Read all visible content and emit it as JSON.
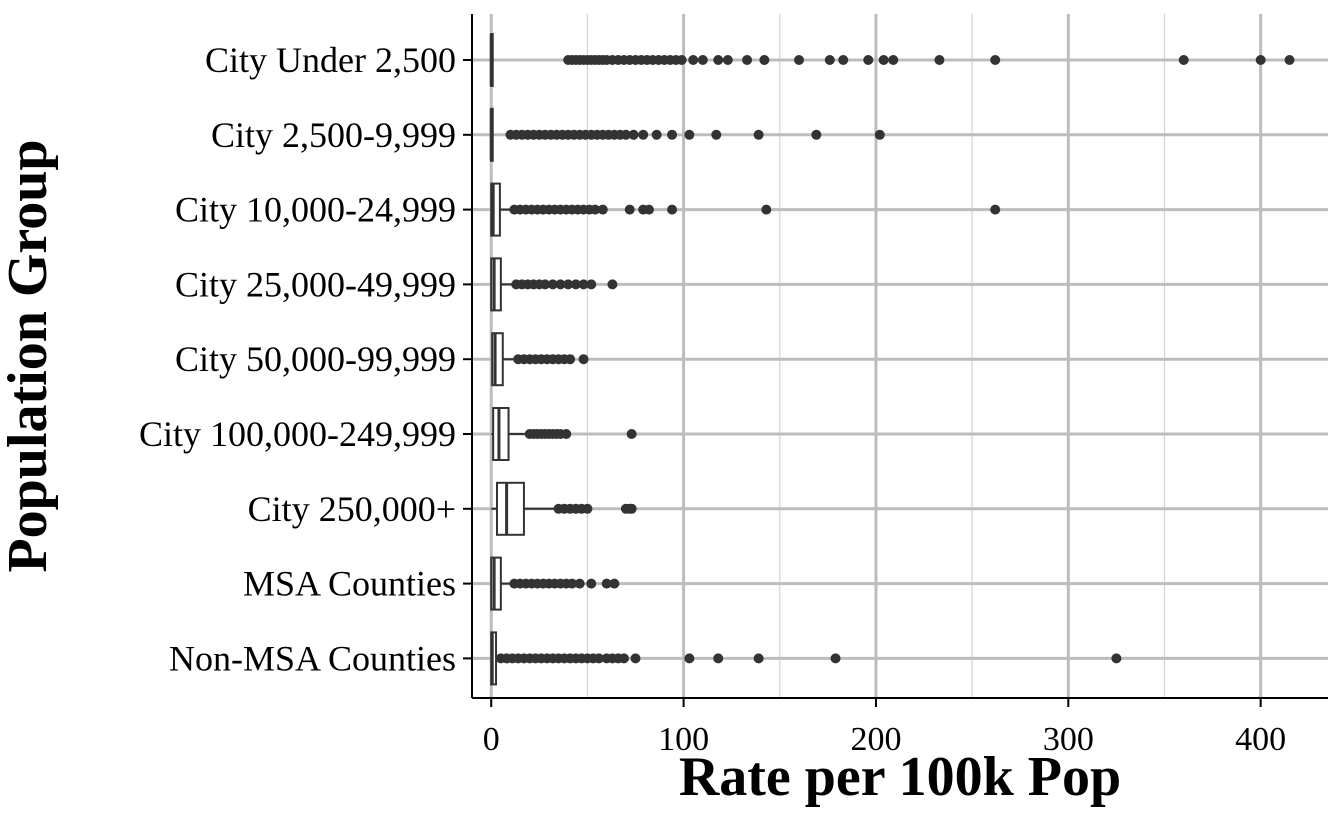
{
  "chart_data": {
    "type": "boxplot",
    "orientation": "horizontal",
    "title": "",
    "xlabel": "Rate per 100k Pop",
    "ylabel": "Population Group",
    "xlim": [
      -10,
      435
    ],
    "xticks": [
      0,
      100,
      200,
      300,
      400
    ],
    "grid": true,
    "legend": "none",
    "colors": {
      "grid_major": "#bdbdbd",
      "grid_minor": "#d4d4d4",
      "outlier": "#333333",
      "box_stroke": "#333333",
      "box_fill": "#ffffff",
      "axis": "#000000"
    },
    "groups": [
      {
        "label": "City Under 2,500",
        "q1": 0,
        "median": 0,
        "q3": 0,
        "whisker_low": 0,
        "whisker_high": 0,
        "outliers": [
          40,
          42,
          44,
          46,
          48,
          50,
          52,
          54,
          56,
          58,
          60,
          63,
          66,
          69,
          72,
          75,
          78,
          81,
          84,
          87,
          90,
          93,
          96,
          99,
          105,
          110,
          118,
          123,
          133,
          142,
          160,
          176,
          183,
          196,
          204,
          209,
          233,
          262,
          360,
          400,
          415
        ]
      },
      {
        "label": "City 2,500-9,999",
        "q1": 0,
        "median": 0,
        "q3": 0,
        "whisker_low": 0,
        "whisker_high": 0,
        "outliers": [
          10,
          13,
          16,
          19,
          22,
          25,
          28,
          31,
          34,
          37,
          40,
          43,
          46,
          49,
          52,
          55,
          58,
          61,
          64,
          67,
          70,
          74,
          79,
          86,
          94,
          103,
          117,
          139,
          169,
          202
        ]
      },
      {
        "label": "City 10,000-24,999",
        "q1": 0,
        "median": 1,
        "q3": 4.5,
        "whisker_low": 0,
        "whisker_high": 11,
        "outliers": [
          12,
          15,
          18,
          21,
          24,
          27,
          30,
          33,
          36,
          39,
          42,
          45,
          48,
          51,
          54,
          58,
          72,
          79,
          82,
          94,
          143,
          262
        ]
      },
      {
        "label": "City 25,000-49,999",
        "q1": 0,
        "median": 1.5,
        "q3": 5,
        "whisker_low": 0,
        "whisker_high": 12,
        "outliers": [
          13,
          16,
          19,
          22,
          25,
          28,
          32,
          36,
          40,
          44,
          48,
          52,
          63
        ]
      },
      {
        "label": "City 50,000-99,999",
        "q1": 0.5,
        "median": 2,
        "q3": 6,
        "whisker_low": 0,
        "whisker_high": 13,
        "outliers": [
          14,
          17,
          20,
          23,
          26,
          29,
          32,
          35,
          38,
          41,
          48
        ]
      },
      {
        "label": "City 100,000-249,999",
        "q1": 1,
        "median": 4,
        "q3": 9,
        "whisker_low": 0,
        "whisker_high": 19,
        "outliers": [
          20,
          22,
          24,
          26,
          28,
          30,
          32,
          34,
          36,
          39,
          73
        ]
      },
      {
        "label": "City 250,000+",
        "q1": 3,
        "median": 8,
        "q3": 17,
        "whisker_low": 0,
        "whisker_high": 33,
        "outliers": [
          35,
          38,
          41,
          44,
          47,
          50,
          70,
          72,
          73
        ]
      },
      {
        "label": "MSA Counties",
        "q1": 0,
        "median": 1.5,
        "q3": 5,
        "whisker_low": 0,
        "whisker_high": 11,
        "outliers": [
          12,
          15,
          18,
          21,
          24,
          27,
          30,
          33,
          36,
          39,
          42,
          46,
          52,
          60,
          64
        ]
      },
      {
        "label": "Non-MSA Counties",
        "q1": 0,
        "median": 0.5,
        "q3": 2.5,
        "whisker_low": 0,
        "whisker_high": 4,
        "outliers": [
          5,
          8,
          11,
          14,
          17,
          20,
          23,
          26,
          29,
          32,
          35,
          38,
          41,
          44,
          47,
          50,
          53,
          56,
          60,
          63,
          66,
          69,
          75,
          103,
          118,
          139,
          179,
          325
        ]
      }
    ]
  }
}
